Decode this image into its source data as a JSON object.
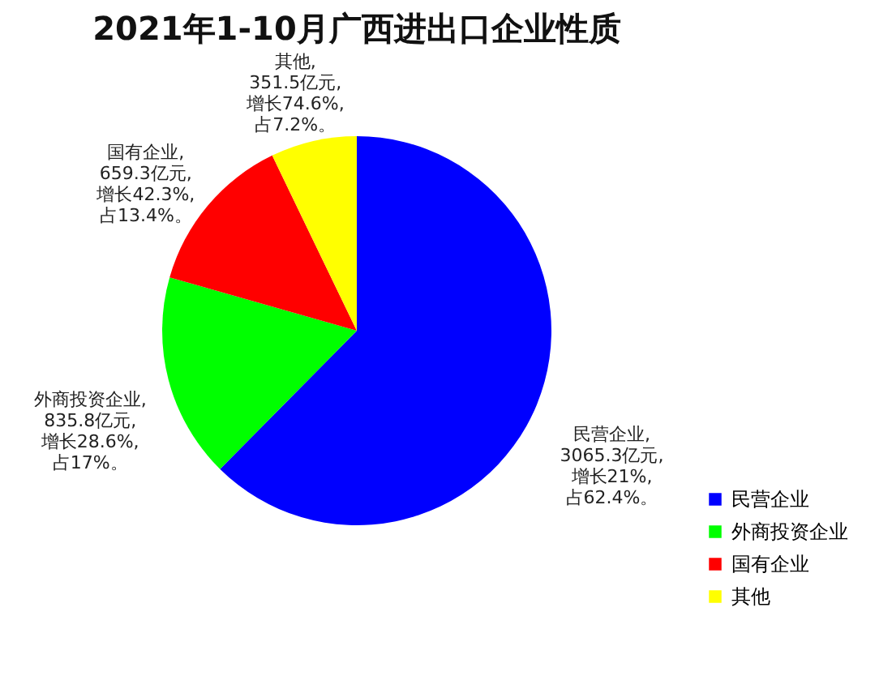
{
  "chart_data": {
    "type": "pie",
    "title": "2021年1-10月广西进出口企业性质",
    "categories": [
      "民营企业",
      "外商投资企业",
      "国有企业",
      "其他"
    ],
    "values": [
      3065.3,
      835.8,
      659.3,
      351.5
    ],
    "colors": [
      "#0000ff",
      "#00ff00",
      "#ff0000",
      "#ffff00"
    ],
    "value_labels": [
      "民营企业,\n3065.3亿元,\n增长21%,\n占62.4%。",
      "外商投资企业,\n835.8亿元,\n增长28.6%,\n占17%。",
      "国有企业,\n659.3亿元,\n增长42.3%,\n占13.4%。",
      "其他,\n351.5亿元,\n增长74.6%,\n占7.2%。"
    ],
    "legend": "bottom right"
  }
}
